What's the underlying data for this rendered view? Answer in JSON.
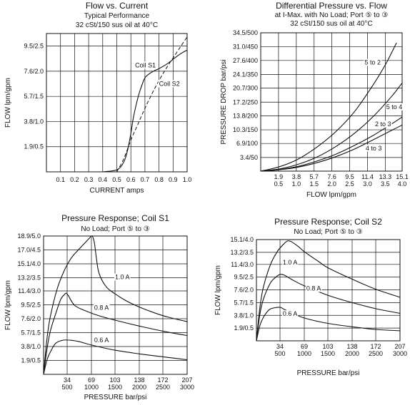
{
  "chart_data": [
    {
      "type": "line",
      "title": "Flow vs. Current",
      "subtitle": [
        "Typical Performance",
        "32 cSt/150 sus oil at 40°C"
      ],
      "xlabel": "CURRENT amps",
      "ylabel": "FLOW lpm/gpm",
      "xlim": [
        0,
        1.0
      ],
      "ylim": [
        0,
        10.45
      ],
      "x_ticks": [
        0.1,
        0.2,
        0.3,
        0.4,
        0.5,
        0.6,
        0.7,
        0.8,
        0.9,
        1.0
      ],
      "x_tick_labels": [
        "0.1",
        "0.2",
        "0.3",
        "0.4",
        "0.5",
        "0.6",
        "0.7",
        "0.8",
        "0.9",
        "1.0"
      ],
      "y_ticks": [
        1.9,
        3.8,
        5.7,
        7.6,
        9.5
      ],
      "y_tick_labels": [
        "1.9/0.5",
        "3.8/1.0",
        "5.7/1.5",
        "7.6/2.0",
        "9.5/2.5"
      ],
      "series": [
        {
          "name": "Coil S1",
          "style": "solid",
          "x": [
            0.4,
            0.45,
            0.5,
            0.53,
            0.56,
            0.58,
            0.6,
            0.62,
            0.65,
            0.68,
            0.7,
            0.73,
            0.76,
            0.8,
            0.85,
            0.9,
            0.95,
            1.0
          ],
          "y": [
            0,
            0.05,
            0.15,
            0.4,
            1.0,
            1.8,
            2.9,
            4.2,
            5.6,
            6.6,
            7.1,
            7.4,
            7.6,
            7.8,
            8.1,
            8.5,
            8.9,
            9.2
          ]
        },
        {
          "name": "Coil S2",
          "style": "dashed",
          "x": [
            0.5,
            0.55,
            0.6,
            0.65,
            0.7,
            0.75,
            0.8,
            0.85,
            0.9,
            0.95,
            1.0
          ],
          "y": [
            0,
            1.0,
            2.4,
            3.6,
            4.8,
            5.9,
            6.9,
            7.8,
            8.6,
            9.4,
            10.2
          ]
        }
      ]
    },
    {
      "type": "line",
      "title": "Differential Pressure vs. Flow",
      "subtitle": [
        "at I-Max. with No Load; Port ⑤ to ③",
        "32 cSt/150 sus oil at 40°C"
      ],
      "xlabel": "FLOW lpm/gpm",
      "ylabel": "PRESSURE DROP bar/psi",
      "xlim": [
        0,
        15.1
      ],
      "ylim": [
        0,
        34.5
      ],
      "x_ticks": [
        1.9,
        3.8,
        5.7,
        7.6,
        9.5,
        11.4,
        13.3,
        15.1
      ],
      "x_tick_labels_top": [
        "1.9",
        "3.8",
        "5.7",
        "7.6",
        "9.5",
        "11.4",
        "13.3",
        "15.1"
      ],
      "x_tick_labels_bottom": [
        "0.5",
        "1.0",
        "1.5",
        "2.0",
        "2.5",
        "3.0",
        "3.5",
        "4.0"
      ],
      "y_ticks": [
        3.4,
        6.9,
        10.3,
        13.8,
        17.2,
        20.7,
        24.1,
        27.6,
        31.0,
        34.5
      ],
      "y_tick_labels": [
        "3.4/50",
        "6.9/100",
        "10.3/150",
        "13.8/200",
        "17.2/250",
        "20.7/300",
        "24.1/350",
        "27.6/400",
        "31.0/450",
        "34.5/500"
      ],
      "series": [
        {
          "name": "5 to 2",
          "x": [
            0,
            2,
            4,
            6,
            8,
            10,
            12,
            13.3,
            14.5
          ],
          "y": [
            0,
            1.1,
            3.0,
            6.0,
            9.8,
            14.8,
            21.5,
            26.5,
            32.0
          ]
        },
        {
          "name": "5 to 4",
          "x": [
            0,
            2,
            4,
            6,
            8,
            10,
            12,
            14,
            15.1
          ],
          "y": [
            0,
            0.55,
            1.7,
            3.5,
            6.1,
            9.4,
            13.6,
            18.7,
            22.0
          ]
        },
        {
          "name": "2 to 3",
          "x": [
            0,
            2,
            4,
            6,
            8,
            10,
            12,
            14,
            15.1
          ],
          "y": [
            0,
            0.4,
            1.2,
            2.5,
            4.2,
            6.4,
            8.9,
            11.8,
            13.5
          ]
        },
        {
          "name": "4 to 3",
          "x": [
            0,
            2,
            4,
            6,
            8,
            10,
            12,
            14,
            15.1
          ],
          "y": [
            0,
            0.35,
            1.0,
            2.1,
            3.6,
            5.5,
            7.8,
            10.2,
            11.5
          ]
        }
      ]
    },
    {
      "type": "line",
      "title": "Pressure Response; Coil S1",
      "subtitle": [
        "No Load; Port ⑤ to ③"
      ],
      "xlabel": "PRESSURE bar/psi",
      "ylabel": "FLOW lpm/gpm",
      "xlim": [
        0,
        207
      ],
      "ylim": [
        0,
        18.9
      ],
      "x_ticks": [
        34,
        69,
        103,
        138,
        172,
        207
      ],
      "x_tick_labels_top": [
        "34",
        "69",
        "103",
        "138",
        "172",
        "207"
      ],
      "x_tick_labels_bottom": [
        "500",
        "1000",
        "1500",
        "2000",
        "2500",
        "3000"
      ],
      "y_ticks": [
        1.9,
        3.8,
        5.7,
        7.6,
        9.5,
        11.4,
        13.2,
        15.1,
        17.0,
        18.9
      ],
      "y_tick_labels": [
        "1.9/0.5",
        "3.8/1.0",
        "5.7/1.5",
        "7.6/2.0",
        "9.5/2.5",
        "11.4/3.0",
        "13.2/3.5",
        "15.1/4.0",
        "17.0/4.5",
        "18.9/5.0"
      ],
      "series": [
        {
          "name": "1.0 A",
          "x": [
            0,
            5,
            10,
            20,
            30,
            40,
            50,
            60,
            66,
            70,
            73,
            76,
            80,
            90,
            103,
            120,
            138,
            160,
            180,
            207
          ],
          "y": [
            0,
            5.0,
            8.0,
            11.8,
            14.2,
            15.9,
            17.0,
            18.0,
            18.6,
            18.9,
            18.1,
            16.0,
            13.8,
            12.0,
            11.0,
            10.0,
            9.2,
            8.4,
            7.8,
            7.2
          ]
        },
        {
          "name": "0.8 A",
          "x": [
            0,
            5,
            10,
            20,
            25,
            30,
            33,
            36,
            45,
            60,
            80,
            103,
            138,
            172,
            207
          ],
          "y": [
            0,
            3.5,
            6.0,
            9.0,
            10.3,
            10.9,
            11.1,
            10.7,
            9.4,
            8.7,
            8.0,
            7.4,
            6.6,
            5.9,
            5.3
          ]
        },
        {
          "name": "0.6 A",
          "x": [
            0,
            5,
            10,
            17,
            25,
            34,
            50,
            69,
            103,
            138,
            172,
            207
          ],
          "y": [
            0,
            2.0,
            3.1,
            4.2,
            4.6,
            4.7,
            4.5,
            4.0,
            3.3,
            2.8,
            2.4,
            2.0
          ]
        }
      ],
      "annotations": [
        "1.0 A",
        "0.8 A",
        "0.6 A"
      ]
    },
    {
      "type": "line",
      "title": "Pressure Response; Coil S2",
      "subtitle": [
        "No Load; Port ⑤ to ③"
      ],
      "xlabel": "PRESSURE bar/psi",
      "ylabel": "FLOW lpm/gpm",
      "xlim": [
        0,
        207
      ],
      "ylim": [
        0,
        15.1
      ],
      "x_ticks": [
        34,
        69,
        103,
        138,
        172,
        207
      ],
      "x_tick_labels_top": [
        "34",
        "69",
        "103",
        "138",
        "172",
        "207"
      ],
      "x_tick_labels_bottom": [
        "500",
        "1000",
        "1500",
        "2000",
        "2500",
        "3000"
      ],
      "y_ticks": [
        1.9,
        3.8,
        5.7,
        7.6,
        9.5,
        11.4,
        13.2,
        15.1
      ],
      "y_tick_labels": [
        "1.9/0.5",
        "3.8/1.0",
        "5.7/1.5",
        "7.6/2.0",
        "9.5/2.5",
        "11.4/3.0",
        "13.2/3.5",
        "15.1/4.0"
      ],
      "series": [
        {
          "name": "1.0 A",
          "x": [
            0,
            5,
            10,
            20,
            30,
            40,
            45,
            50,
            60,
            69,
            90,
            103,
            138,
            172,
            207
          ],
          "y": [
            0,
            5.0,
            8.0,
            11.3,
            13.3,
            14.5,
            14.9,
            14.8,
            14.1,
            13.3,
            11.8,
            10.9,
            9.2,
            7.7,
            6.5
          ]
        },
        {
          "name": "0.8 A",
          "x": [
            0,
            5,
            10,
            20,
            28,
            34,
            40,
            50,
            69,
            103,
            138,
            172,
            207
          ],
          "y": [
            0,
            4.0,
            6.2,
            8.6,
            9.5,
            9.9,
            9.8,
            9.2,
            8.2,
            6.8,
            5.7,
            4.8,
            4.1
          ]
        },
        {
          "name": "0.6 A",
          "x": [
            0,
            5,
            10,
            18,
            25,
            34,
            40,
            50,
            69,
            103,
            138,
            172,
            207
          ],
          "y": [
            0,
            2.3,
            3.5,
            4.6,
            4.9,
            5.0,
            4.7,
            4.2,
            3.4,
            2.6,
            2.1,
            1.7,
            1.5
          ]
        }
      ],
      "annotations": [
        "1.0 A",
        "0.8 A",
        "0.6 A"
      ]
    }
  ]
}
